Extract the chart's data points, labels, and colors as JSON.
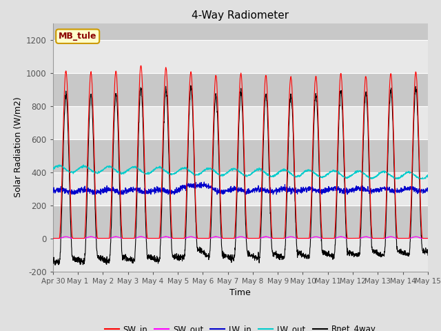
{
  "title": "4-Way Radiometer",
  "xlabel": "Time",
  "ylabel": "Solar Radiation (W/m2)",
  "station_label": "MB_tule",
  "ylim": [
    -200,
    1300
  ],
  "yticks": [
    -200,
    0,
    200,
    400,
    600,
    800,
    1000,
    1200
  ],
  "x_tick_labels": [
    "Apr 30",
    "May 1",
    "May 2",
    "May 3",
    "May 4",
    "May 5",
    "May 6",
    "May 7",
    "May 8",
    "May 9",
    "May 10",
    "May 11",
    "May 12",
    "May 13",
    "May 14",
    "May 15"
  ],
  "colors": {
    "SW_in": "#ff0000",
    "SW_out": "#ff00ff",
    "LW_in": "#0000cc",
    "LW_out": "#00cccc",
    "Rnet_4way": "#000000"
  },
  "fig_bg": "#e0e0e0",
  "plot_bg": "#c8c8c8",
  "grid_color": "#e8e8e8"
}
